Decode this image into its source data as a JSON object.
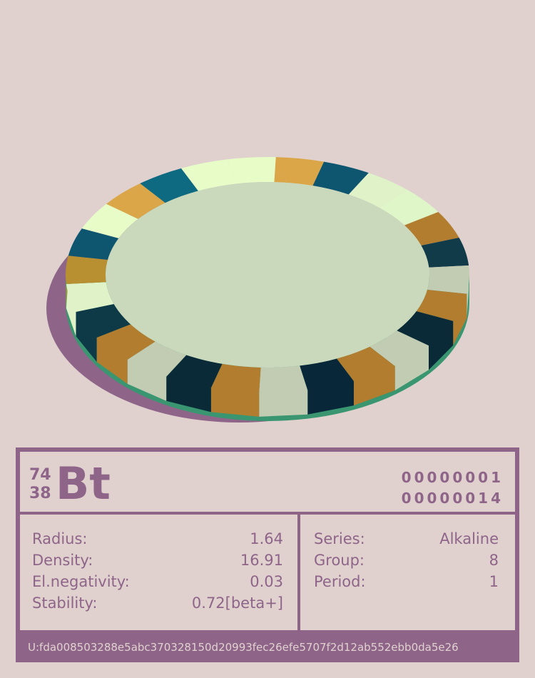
{
  "element": {
    "mass_number": "74",
    "atomic_number": "38",
    "symbol": "Bt",
    "code_1": "00000001",
    "code_2": "00000014"
  },
  "properties_left": [
    {
      "label": "Radius:",
      "value": "1.64"
    },
    {
      "label": "Density:",
      "value": "16.91"
    },
    {
      "label": "El.negativity:",
      "value": "0.03"
    },
    {
      "label": "Stability:",
      "value": "0.72[beta+]"
    }
  ],
  "properties_right": [
    {
      "label": "Series:",
      "value": "Alkaline"
    },
    {
      "label": "Group:",
      "value": "8"
    },
    {
      "label": "Period:",
      "value": "1"
    }
  ],
  "uid": "U:fda008503288e5abc370328150d20993fec26efe5707f2d12ab552ebb0da5e26",
  "colors": {
    "background": "#e0d1cf",
    "card": "#8e6589",
    "coin_face": "#cad8bb",
    "coin_edge": "#3a9670",
    "segments": [
      "#e8fcc8",
      "#daa647",
      "#0e5670",
      "#e0f2c8",
      "#dff6c8",
      "#b27d2e",
      "#123b4a",
      "#c2ccb3",
      "#b27d2e",
      "#0a2a38",
      "#c2ccb3",
      "#b27d2e",
      "#08283a",
      "#c2ccb3",
      "#b27d2e",
      "#0a2a38",
      "#c2ccb3",
      "#b27d2e",
      "#0e3a48",
      "#e0f2c8",
      "#b89032",
      "#0e5670",
      "#e8fcc8",
      "#daa647",
      "#0e6a80",
      "#e8fcc8"
    ]
  }
}
